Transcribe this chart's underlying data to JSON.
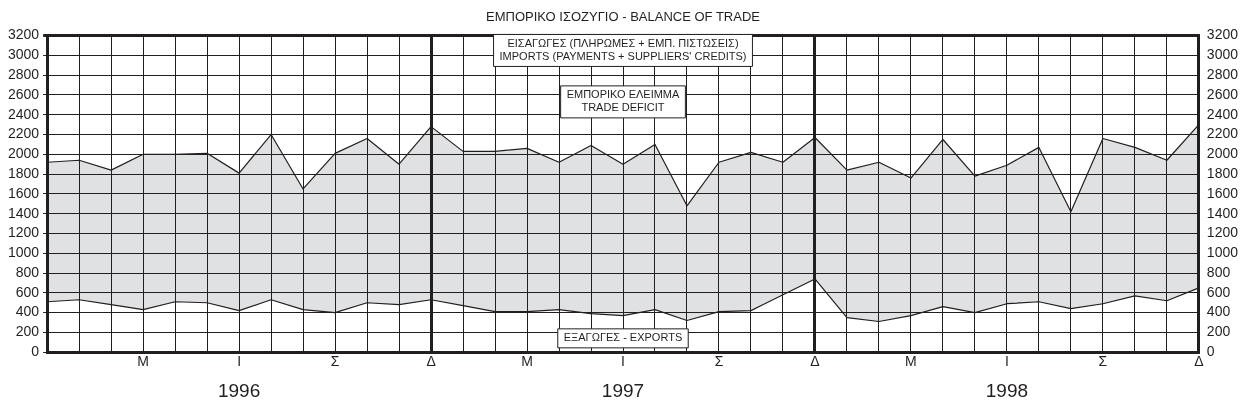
{
  "chart_data": {
    "type": "line",
    "title": "ΕΜΠΟΡΙΚΟ ΙΣΟΖΥΓΙΟ - BALANCE OF TRADE",
    "categories": [
      null,
      null,
      null,
      "Μ",
      null,
      null,
      "Ι",
      null,
      null,
      "Σ",
      null,
      null,
      "Δ",
      null,
      null,
      "Μ",
      null,
      null,
      "Ι",
      null,
      null,
      "Σ",
      null,
      null,
      "Δ",
      null,
      null,
      "Μ",
      null,
      null,
      "Ι",
      null,
      null,
      "Σ",
      null,
      null,
      "Δ"
    ],
    "series": [
      {
        "type": "area",
        "color": "#231f20",
        "values": [
          1920,
          1940,
          1840,
          2000,
          2000,
          2010,
          1810,
          2200,
          1650,
          2010,
          2160,
          1900,
          2280,
          2030,
          2030,
          2060,
          1920,
          2090,
          1900,
          2100,
          1480,
          1920,
          2020,
          1920,
          2170,
          1840,
          1920,
          1760,
          2150,
          1780,
          1890,
          2070,
          1420,
          2160,
          2070,
          1940,
          2300
        ]
      },
      {
        "color": "#231f20",
        "values": [
          510,
          530,
          480,
          430,
          510,
          500,
          420,
          530,
          430,
          400,
          500,
          480,
          530,
          470,
          410,
          410,
          430,
          390,
          370,
          430,
          320,
          410,
          420,
          580,
          740,
          350,
          310,
          370,
          460,
          400,
          490,
          510,
          440,
          490,
          570,
          520,
          650
        ]
      }
    ],
    "ylim": [
      0,
      3200
    ],
    "yticks": [
      0,
      200,
      400,
      600,
      800,
      1000,
      1200,
      1400,
      1600,
      1800,
      2000,
      2200,
      2400,
      2600,
      2800,
      3000,
      3200
    ],
    "y2lim": [
      0,
      3200
    ],
    "y2ticks": [
      0,
      200,
      400,
      600,
      800,
      1000,
      1200,
      1400,
      1600,
      1800,
      2000,
      2200,
      2400,
      2600,
      2800,
      3000,
      3200
    ],
    "annotations": [
      "ΕΙΣΑΓΩΓΕΣ (ΠΛΗΡΩΜΕΣ + ΕΜΠ. ΠΙΣΤΩΣΕΙΣ)\nIMPORTS (PAYMENTS + SUPPLIERS' CREDITS)",
      "ΕΜΠΟΡΙΚΟ ΕΛΕΙΜΜΑ\nTRADE DEFICIT",
      "ΕΞΑΓΩΓΕΣ - EXPORTS",
      "1996",
      "1997",
      "1998"
    ],
    "grid": true,
    "legend": false,
    "marker": "none",
    "line_style": "solid"
  }
}
